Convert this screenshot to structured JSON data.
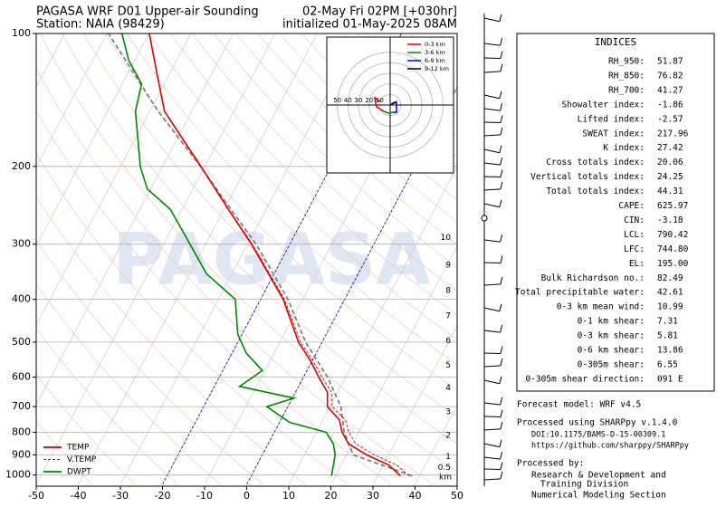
{
  "chart_data": {
    "type": "skewt",
    "title": "PAGASA WRF D01 Upper-air Sounding",
    "subtitle": "Station: NAIA (98429)",
    "valid_time": "02-May Fri 02PM [+030hr]",
    "init_time": "initialized 01-May-2025 08AM",
    "watermark": "PAGASA",
    "xlim": [
      -50,
      50
    ],
    "xticks": [
      -50,
      -40,
      -30,
      -20,
      -10,
      0,
      10,
      20,
      30,
      40,
      50
    ],
    "ylim": [
      1050,
      100
    ],
    "yticks": [
      100,
      200,
      300,
      400,
      500,
      600,
      700,
      800,
      900,
      1000
    ],
    "log_scale": true,
    "grid": true,
    "highlight_isotherms": [
      -20,
      0
    ],
    "highlight_color": "#0000cc",
    "series": [
      {
        "name": "TEMP",
        "color": "#dd0000",
        "style": "solid",
        "pressure": [
          1005,
          950,
          900,
          850,
          800,
          750,
          700,
          650,
          600,
          550,
          500,
          400,
          300,
          250,
          200,
          150,
          120,
          100
        ],
        "values": [
          35.5,
          31.4,
          24.8,
          19.1,
          16.1,
          13.9,
          9.4,
          7.6,
          3.6,
          -0.5,
          -5.6,
          -14.6,
          -29.1,
          -39,
          -50.9,
          -66.5,
          -73.9,
          -79.9
        ]
      },
      {
        "name": "V.TEMP",
        "color": "#dd0000",
        "style": "dashed",
        "pressure": [
          1005,
          950,
          900,
          850,
          800,
          750,
          700,
          650,
          600,
          550,
          500,
          400,
          300,
          250,
          200,
          150,
          120,
          100
        ],
        "values": [
          37.5,
          33.3,
          26.6,
          20.8,
          17.7,
          15.3,
          10.5,
          8.6,
          4.4,
          0.1,
          -5.1,
          -14.3,
          -28.9,
          -38.9,
          -50.9,
          -66.5,
          -73.9,
          -79.9
        ]
      },
      {
        "name": "DWPT",
        "color": "#008800",
        "style": "solid",
        "pressure": [
          1005,
          900,
          850,
          800,
          760,
          700,
          670,
          630,
          580,
          530,
          480,
          400,
          350,
          300,
          250,
          225,
          200,
          150,
          130,
          115,
          100
        ],
        "values": [
          19.1,
          17.3,
          15.5,
          12.3,
          2.4,
          -5,
          0.4,
          -14,
          -10.6,
          -16.6,
          -21,
          -26,
          -36.1,
          -43.7,
          -52.8,
          -60.8,
          -65.3,
          -73.4,
          -75.4,
          -81.4,
          -86.4
        ]
      }
    ],
    "parcel": {
      "color": "#808080",
      "pressure": [
        1005,
        900,
        800,
        700,
        600,
        500,
        400,
        300,
        250,
        200,
        150,
        100
      ],
      "values": [
        38.3,
        21.6,
        16.6,
        12.6,
        5.7,
        -3.9,
        -13.5,
        -28,
        -38.4,
        -51,
        -68,
        -89.6
      ]
    },
    "height_labels": {
      "unit": "km",
      "heights": [
        0.5,
        1,
        2,
        3,
        4,
        5,
        6,
        7,
        8,
        9,
        10
      ],
      "pressure": [
        963,
        910,
        813,
        719,
        635,
        565,
        497,
        436,
        382,
        335,
        290
      ]
    },
    "hodograph": {
      "lim": 60,
      "rings": [
        10,
        20,
        30,
        40,
        50
      ],
      "segments": [
        {
          "name": "0-3 km",
          "color": "#dd0000",
          "u": [
            -9.5,
            -14.7,
            -12.9,
            -6
          ],
          "v": [
            3.4,
            6.9,
            -1.7,
            -6
          ]
        },
        {
          "name": "3-6 km",
          "color": "#008800",
          "u": [
            -6,
            -1,
            2.6
          ],
          "v": [
            -6,
            -7.8,
            -6.9
          ]
        },
        {
          "name": "6-9 km",
          "color": "#0000dd",
          "u": [
            2.6,
            6,
            6,
            0.9
          ],
          "v": [
            -6.9,
            -6.9,
            2.6,
            0.9
          ]
        },
        {
          "name": "9-12 km",
          "color": "#000000",
          "u": [
            0.9,
            6
          ],
          "v": [
            0.9,
            3.4
          ]
        }
      ]
    }
  },
  "indices": {
    "title": "INDICES",
    "rows": [
      {
        "label": "RH_950:",
        "value": "51.87"
      },
      {
        "label": "RH_850:",
        "value": "76.82"
      },
      {
        "label": "RH_700:",
        "value": "41.27"
      },
      {
        "label": "Showalter index:",
        "value": "-1.86"
      },
      {
        "label": "Lifted index:",
        "value": "-2.57"
      },
      {
        "label": "SWEAT index:",
        "value": "217.96"
      },
      {
        "label": "K index:",
        "value": "27.42"
      },
      {
        "label": "Cross totals index:",
        "value": "20.06"
      },
      {
        "label": "Vertical totals index:",
        "value": "24.25"
      },
      {
        "label": "Total totals index:",
        "value": "44.31"
      },
      {
        "label": "CAPE:",
        "value": "625.97"
      },
      {
        "label": "CIN:",
        "value": "-3.18"
      },
      {
        "label": "LCL:",
        "value": "790.42"
      },
      {
        "label": "LFC:",
        "value": "744.80"
      },
      {
        "label": "EL:",
        "value": "195.00"
      },
      {
        "label": "Bulk Richardson no.:",
        "value": "82.49"
      },
      {
        "label": "Total precipitable water:",
        "value": "42.61"
      },
      {
        "label": "0-3 km mean wind:",
        "value": "10.99"
      },
      {
        "label": "0-1 km shear:",
        "value": "7.31"
      },
      {
        "label": "0-3 km shear:",
        "value": "5.81"
      },
      {
        "label": "0-6 km shear:",
        "value": "13.86"
      },
      {
        "label": "0-305m shear:",
        "value": "6.55"
      },
      {
        "label": "0-305m shear direction:",
        "value": "091 E"
      }
    ]
  },
  "footer": [
    "Forecast model: WRF v4.5",
    "Processed using SHARPpy v.1.4.0",
    "DOI:10.1175/BAMS-D-15-00309.1",
    "https://github.com/sharppy/SHARPpy",
    "Processed by:",
    "Research & Development and",
    "Training Division",
    "Numerical Modeling Section"
  ]
}
